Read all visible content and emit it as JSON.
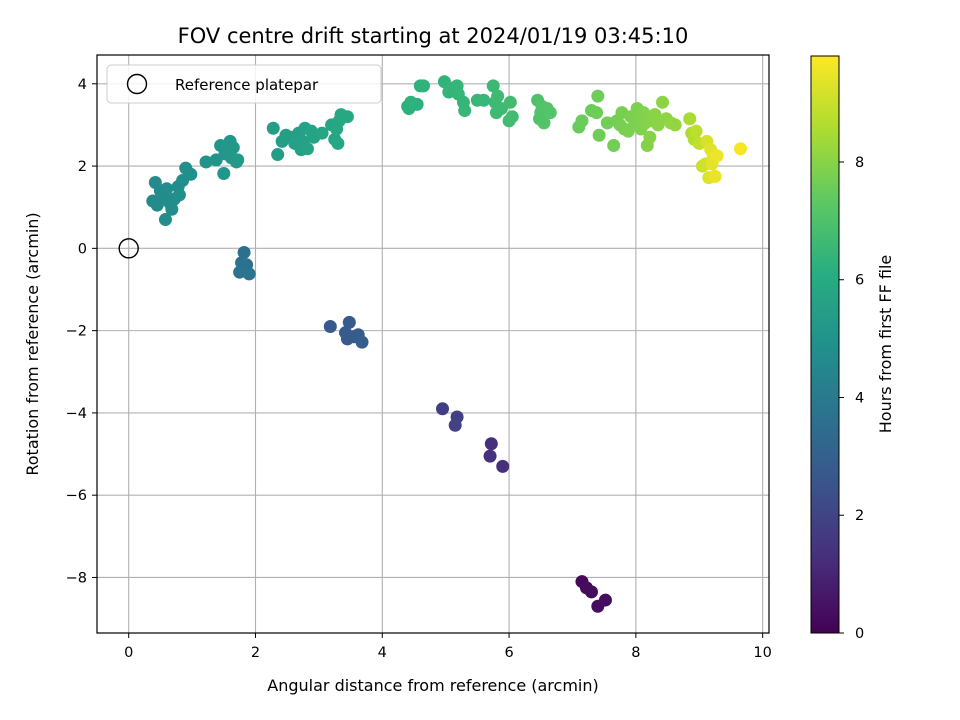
{
  "chart_data": {
    "type": "scatter",
    "title": "FOV centre drift starting at 2024/01/19 03:45:10",
    "xlabel": "Angular distance from reference (arcmin)",
    "ylabel": "Rotation from reference (arcmin)",
    "xlim": [
      -0.5,
      10.1
    ],
    "ylim": [
      -9.35,
      4.7
    ],
    "xticks": [
      0,
      2,
      4,
      6,
      8,
      10
    ],
    "yticks": [
      -8,
      -6,
      -4,
      -2,
      0,
      2,
      4
    ],
    "grid": true,
    "legend": {
      "position": "top-left",
      "entries": [
        "Reference platepar"
      ]
    },
    "reference_point": {
      "label": "Reference platepar",
      "x": 0,
      "y": 0
    },
    "colorbar": {
      "label": "Hours from first FF file",
      "colormap": "viridis",
      "range": [
        0,
        9.8
      ],
      "ticks": [
        0,
        2,
        4,
        6,
        8
      ]
    },
    "points": [
      {
        "x": 7.15,
        "y": -8.1,
        "h": 0.25
      },
      {
        "x": 7.22,
        "y": -8.25,
        "h": 0.28
      },
      {
        "x": 7.3,
        "y": -8.35,
        "h": 0.3
      },
      {
        "x": 7.4,
        "y": -8.7,
        "h": 0.33
      },
      {
        "x": 7.52,
        "y": -8.55,
        "h": 0.35
      },
      {
        "x": 4.95,
        "y": -3.9,
        "h": 1.8
      },
      {
        "x": 5.18,
        "y": -4.1,
        "h": 1.85
      },
      {
        "x": 5.15,
        "y": -4.3,
        "h": 1.88
      },
      {
        "x": 5.72,
        "y": -4.75,
        "h": 1.3
      },
      {
        "x": 5.7,
        "y": -5.05,
        "h": 1.35
      },
      {
        "x": 5.9,
        "y": -5.3,
        "h": 1.32
      },
      {
        "x": 3.18,
        "y": -1.9,
        "h": 2.7
      },
      {
        "x": 3.48,
        "y": -1.8,
        "h": 2.75
      },
      {
        "x": 3.42,
        "y": -2.05,
        "h": 2.8
      },
      {
        "x": 3.45,
        "y": -2.2,
        "h": 2.8
      },
      {
        "x": 3.55,
        "y": -2.15,
        "h": 2.85
      },
      {
        "x": 3.62,
        "y": -2.1,
        "h": 2.85
      },
      {
        "x": 3.68,
        "y": -2.28,
        "h": 2.9
      },
      {
        "x": 1.82,
        "y": -0.1,
        "h": 3.6
      },
      {
        "x": 1.78,
        "y": -0.35,
        "h": 3.65
      },
      {
        "x": 1.86,
        "y": -0.4,
        "h": 3.68
      },
      {
        "x": 1.75,
        "y": -0.58,
        "h": 3.7
      },
      {
        "x": 1.9,
        "y": -0.62,
        "h": 3.72
      },
      {
        "x": 0.38,
        "y": 1.15,
        "h": 4.6
      },
      {
        "x": 0.42,
        "y": 1.6,
        "h": 4.62
      },
      {
        "x": 0.5,
        "y": 1.4,
        "h": 4.65
      },
      {
        "x": 0.45,
        "y": 1.05,
        "h": 4.66
      },
      {
        "x": 0.55,
        "y": 1.25,
        "h": 4.68
      },
      {
        "x": 0.6,
        "y": 1.45,
        "h": 4.7
      },
      {
        "x": 0.58,
        "y": 0.7,
        "h": 4.72
      },
      {
        "x": 0.65,
        "y": 1.1,
        "h": 4.74
      },
      {
        "x": 0.68,
        "y": 0.95,
        "h": 4.76
      },
      {
        "x": 0.72,
        "y": 1.2,
        "h": 4.78
      },
      {
        "x": 0.78,
        "y": 1.5,
        "h": 4.8
      },
      {
        "x": 0.8,
        "y": 1.3,
        "h": 4.82
      },
      {
        "x": 0.85,
        "y": 1.65,
        "h": 4.84
      },
      {
        "x": 0.9,
        "y": 1.95,
        "h": 4.86
      },
      {
        "x": 0.98,
        "y": 1.8,
        "h": 4.88
      },
      {
        "x": 1.22,
        "y": 2.1,
        "h": 5.0
      },
      {
        "x": 1.38,
        "y": 2.15,
        "h": 5.05
      },
      {
        "x": 1.45,
        "y": 2.5,
        "h": 5.08
      },
      {
        "x": 1.5,
        "y": 1.82,
        "h": 5.1
      },
      {
        "x": 1.52,
        "y": 2.3,
        "h": 5.12
      },
      {
        "x": 1.55,
        "y": 2.45,
        "h": 5.14
      },
      {
        "x": 1.6,
        "y": 2.6,
        "h": 5.16
      },
      {
        "x": 1.62,
        "y": 2.2,
        "h": 5.18
      },
      {
        "x": 1.65,
        "y": 2.45,
        "h": 5.2
      },
      {
        "x": 1.7,
        "y": 2.1,
        "h": 5.22
      },
      {
        "x": 1.72,
        "y": 2.15,
        "h": 5.24
      },
      {
        "x": 2.28,
        "y": 2.92,
        "h": 5.4
      },
      {
        "x": 2.35,
        "y": 2.28,
        "h": 5.42
      },
      {
        "x": 2.42,
        "y": 2.6,
        "h": 5.45
      },
      {
        "x": 2.48,
        "y": 2.75,
        "h": 5.48
      },
      {
        "x": 2.55,
        "y": 2.7,
        "h": 5.5
      },
      {
        "x": 2.62,
        "y": 2.55,
        "h": 5.52
      },
      {
        "x": 2.68,
        "y": 2.8,
        "h": 5.55
      },
      {
        "x": 2.72,
        "y": 2.4,
        "h": 5.58
      },
      {
        "x": 2.75,
        "y": 2.6,
        "h": 5.6
      },
      {
        "x": 2.78,
        "y": 2.92,
        "h": 5.62
      },
      {
        "x": 2.82,
        "y": 2.42,
        "h": 5.64
      },
      {
        "x": 2.88,
        "y": 2.85,
        "h": 5.66
      },
      {
        "x": 2.92,
        "y": 2.7,
        "h": 5.68
      },
      {
        "x": 3.05,
        "y": 2.8,
        "h": 5.7
      },
      {
        "x": 3.2,
        "y": 3.0,
        "h": 5.75
      },
      {
        "x": 3.25,
        "y": 2.65,
        "h": 5.78
      },
      {
        "x": 3.28,
        "y": 2.9,
        "h": 5.8
      },
      {
        "x": 3.3,
        "y": 2.55,
        "h": 5.82
      },
      {
        "x": 3.32,
        "y": 3.1,
        "h": 5.84
      },
      {
        "x": 3.35,
        "y": 3.25,
        "h": 5.86
      },
      {
        "x": 3.45,
        "y": 3.2,
        "h": 5.88
      },
      {
        "x": 4.4,
        "y": 3.45,
        "h": 6.2
      },
      {
        "x": 4.42,
        "y": 3.4,
        "h": 6.22
      },
      {
        "x": 4.45,
        "y": 3.55,
        "h": 6.24
      },
      {
        "x": 4.55,
        "y": 3.5,
        "h": 6.26
      },
      {
        "x": 4.6,
        "y": 3.95,
        "h": 6.28
      },
      {
        "x": 4.65,
        "y": 3.95,
        "h": 6.3
      },
      {
        "x": 4.98,
        "y": 4.05,
        "h": 6.35
      },
      {
        "x": 5.05,
        "y": 3.8,
        "h": 6.38
      },
      {
        "x": 5.12,
        "y": 3.9,
        "h": 6.4
      },
      {
        "x": 5.18,
        "y": 3.95,
        "h": 6.42
      },
      {
        "x": 5.2,
        "y": 3.75,
        "h": 6.44
      },
      {
        "x": 5.28,
        "y": 3.55,
        "h": 6.46
      },
      {
        "x": 5.3,
        "y": 3.35,
        "h": 6.48
      },
      {
        "x": 5.5,
        "y": 3.6,
        "h": 6.5
      },
      {
        "x": 5.6,
        "y": 3.6,
        "h": 6.52
      },
      {
        "x": 5.75,
        "y": 3.95,
        "h": 6.6
      },
      {
        "x": 5.78,
        "y": 3.55,
        "h": 6.62
      },
      {
        "x": 5.8,
        "y": 3.3,
        "h": 6.64
      },
      {
        "x": 5.82,
        "y": 3.7,
        "h": 6.66
      },
      {
        "x": 5.88,
        "y": 3.4,
        "h": 6.68
      },
      {
        "x": 6.0,
        "y": 3.1,
        "h": 6.7
      },
      {
        "x": 6.02,
        "y": 3.55,
        "h": 6.72
      },
      {
        "x": 6.05,
        "y": 3.2,
        "h": 6.74
      },
      {
        "x": 6.45,
        "y": 3.6,
        "h": 7.0
      },
      {
        "x": 6.48,
        "y": 3.15,
        "h": 7.02
      },
      {
        "x": 6.5,
        "y": 3.3,
        "h": 7.04
      },
      {
        "x": 6.52,
        "y": 3.45,
        "h": 7.06
      },
      {
        "x": 6.55,
        "y": 3.05,
        "h": 7.08
      },
      {
        "x": 6.6,
        "y": 3.4,
        "h": 7.1
      },
      {
        "x": 6.65,
        "y": 3.3,
        "h": 7.12
      },
      {
        "x": 7.1,
        "y": 2.95,
        "h": 7.5
      },
      {
        "x": 7.15,
        "y": 3.1,
        "h": 7.52
      },
      {
        "x": 7.3,
        "y": 3.35,
        "h": 7.55
      },
      {
        "x": 7.38,
        "y": 3.3,
        "h": 7.58
      },
      {
        "x": 7.4,
        "y": 3.7,
        "h": 7.6
      },
      {
        "x": 7.42,
        "y": 2.75,
        "h": 7.62
      },
      {
        "x": 7.55,
        "y": 3.05,
        "h": 7.65
      },
      {
        "x": 7.65,
        "y": 2.5,
        "h": 7.68
      },
      {
        "x": 7.7,
        "y": 3.1,
        "h": 7.7
      },
      {
        "x": 7.75,
        "y": 3.0,
        "h": 7.72
      },
      {
        "x": 7.78,
        "y": 3.3,
        "h": 7.74
      },
      {
        "x": 7.82,
        "y": 2.9,
        "h": 7.76
      },
      {
        "x": 7.88,
        "y": 2.85,
        "h": 7.78
      },
      {
        "x": 7.92,
        "y": 3.2,
        "h": 7.8
      },
      {
        "x": 7.98,
        "y": 3.0,
        "h": 7.82
      },
      {
        "x": 8.02,
        "y": 3.4,
        "h": 7.84
      },
      {
        "x": 8.05,
        "y": 3.15,
        "h": 7.86
      },
      {
        "x": 8.08,
        "y": 2.9,
        "h": 7.88
      },
      {
        "x": 8.12,
        "y": 3.3,
        "h": 7.9
      },
      {
        "x": 8.15,
        "y": 3.05,
        "h": 7.92
      },
      {
        "x": 8.18,
        "y": 2.5,
        "h": 7.94
      },
      {
        "x": 8.2,
        "y": 3.2,
        "h": 7.96
      },
      {
        "x": 8.22,
        "y": 2.7,
        "h": 7.98
      },
      {
        "x": 8.25,
        "y": 3.1,
        "h": 8.0
      },
      {
        "x": 8.3,
        "y": 3.25,
        "h": 8.02
      },
      {
        "x": 8.35,
        "y": 3.0,
        "h": 8.05
      },
      {
        "x": 8.42,
        "y": 3.55,
        "h": 8.08
      },
      {
        "x": 8.48,
        "y": 3.15,
        "h": 8.1
      },
      {
        "x": 8.55,
        "y": 3.05,
        "h": 8.12
      },
      {
        "x": 8.62,
        "y": 3.0,
        "h": 8.15
      },
      {
        "x": 8.85,
        "y": 3.15,
        "h": 8.5
      },
      {
        "x": 8.88,
        "y": 2.8,
        "h": 8.6
      },
      {
        "x": 8.92,
        "y": 2.65,
        "h": 8.7
      },
      {
        "x": 8.95,
        "y": 2.85,
        "h": 8.8
      },
      {
        "x": 9.0,
        "y": 2.55,
        "h": 8.9
      },
      {
        "x": 9.05,
        "y": 2.0,
        "h": 9.0
      },
      {
        "x": 9.1,
        "y": 2.05,
        "h": 9.1
      },
      {
        "x": 9.12,
        "y": 2.6,
        "h": 9.2
      },
      {
        "x": 9.15,
        "y": 1.72,
        "h": 9.3
      },
      {
        "x": 9.18,
        "y": 2.4,
        "h": 9.35
      },
      {
        "x": 9.2,
        "y": 2.05,
        "h": 9.4
      },
      {
        "x": 9.22,
        "y": 2.2,
        "h": 9.45
      },
      {
        "x": 9.25,
        "y": 1.75,
        "h": 9.5
      },
      {
        "x": 9.28,
        "y": 2.25,
        "h": 9.55
      },
      {
        "x": 9.65,
        "y": 2.42,
        "h": 9.7
      }
    ]
  }
}
